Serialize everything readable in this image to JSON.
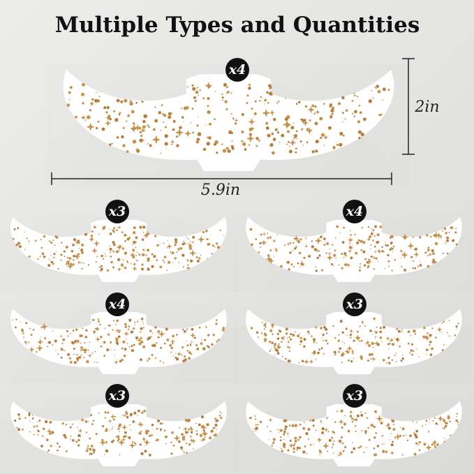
{
  "header": {
    "title": "Multiple Types and Quantities"
  },
  "main_sheet": {
    "badge": "x4",
    "height": "2in",
    "width": "5.9in"
  },
  "sheets": [
    {
      "badge": "x3"
    },
    {
      "badge": "x4"
    },
    {
      "badge": "x4"
    },
    {
      "badge": "x3"
    },
    {
      "badge": "x3"
    },
    {
      "badge": "x3"
    }
  ]
}
